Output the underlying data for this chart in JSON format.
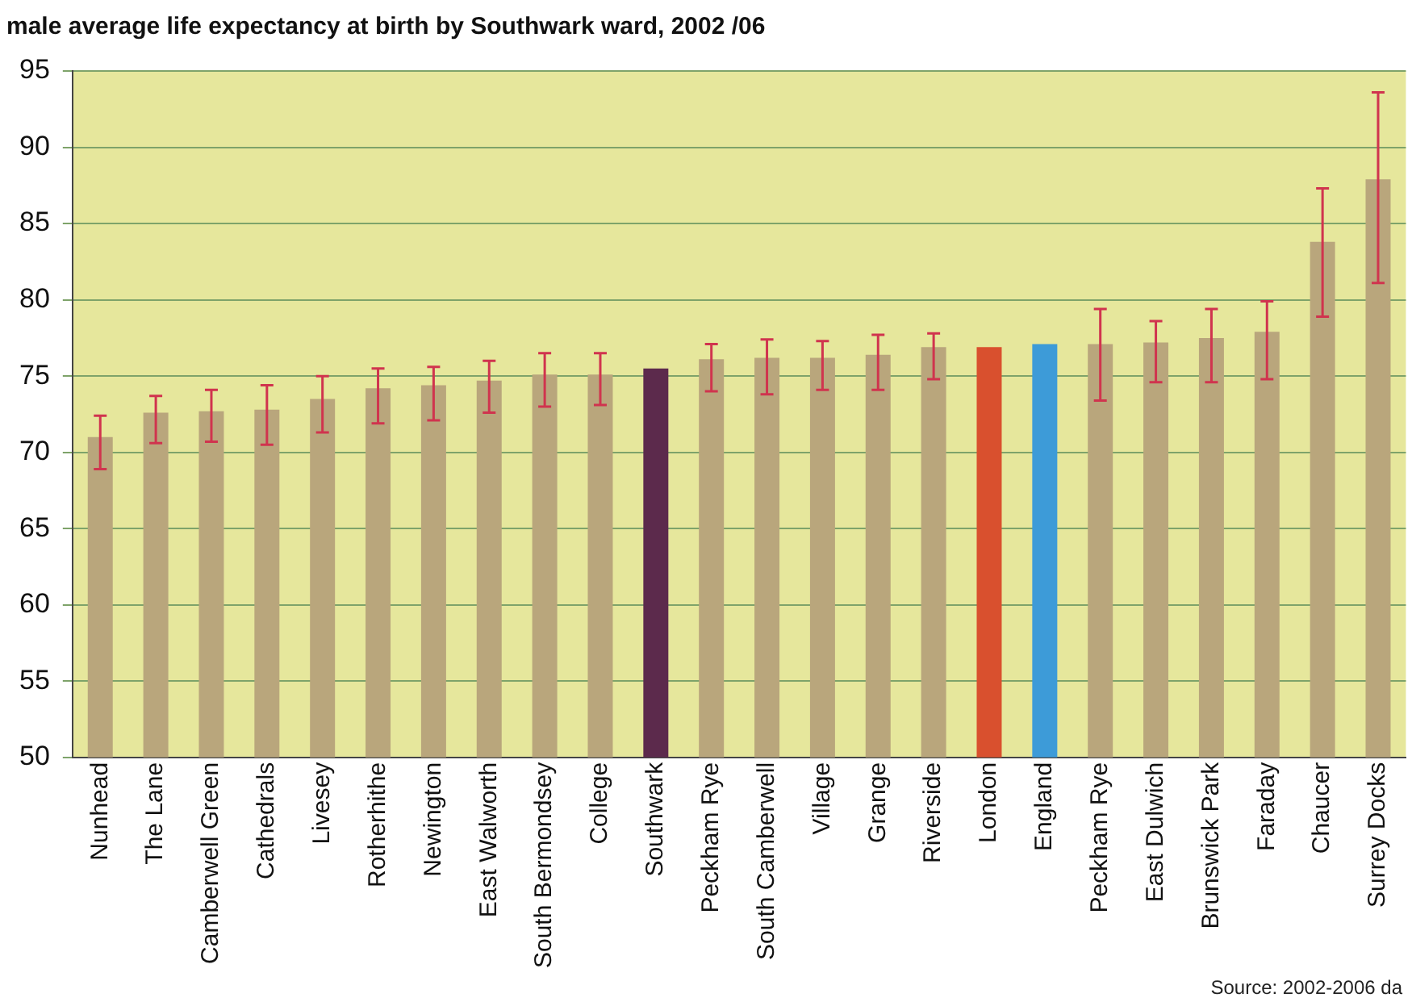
{
  "chart_data": {
    "type": "bar",
    "title": "male average life expectancy at birth by Southwark ward, 2002 /06",
    "categories": [
      "Nunhead",
      "The Lane",
      "Camberwell Green",
      "Cathedrals",
      "Livesey",
      "Rotherhithe",
      "Newington",
      "East Walworth",
      "South Bermondsey",
      "College",
      "Southwark",
      "Peckham Rye",
      "South Camberwell",
      "Village",
      "Grange",
      "Riverside",
      "London",
      "England",
      "Peckham Rye",
      "East Dulwich",
      "Brunswick Park",
      "Faraday",
      "Chaucer",
      "Surrey Docks"
    ],
    "values": [
      71.0,
      72.6,
      72.7,
      72.8,
      73.5,
      74.2,
      74.4,
      74.7,
      75.1,
      75.1,
      75.5,
      76.1,
      76.2,
      76.2,
      76.4,
      76.9,
      76.9,
      77.1,
      77.1,
      77.2,
      77.5,
      77.9,
      83.8,
      87.9
    ],
    "colors": [
      "#b9a67c",
      "#b9a67c",
      "#b9a67c",
      "#b9a67c",
      "#b9a67c",
      "#b9a67c",
      "#b9a67c",
      "#b9a67c",
      "#b9a67c",
      "#b9a67c",
      "#5c2a4c",
      "#b9a67c",
      "#b9a67c",
      "#b9a67c",
      "#b9a67c",
      "#b9a67c",
      "#d9502e",
      "#3d9bd8",
      "#b9a67c",
      "#b9a67c",
      "#b9a67c",
      "#b9a67c",
      "#b9a67c",
      "#b9a67c"
    ],
    "errors": [
      [
        68.9,
        72.4
      ],
      [
        70.6,
        73.7
      ],
      [
        70.7,
        74.1
      ],
      [
        70.5,
        74.4
      ],
      [
        71.3,
        75.0
      ],
      [
        71.9,
        75.5
      ],
      [
        72.1,
        75.6
      ],
      [
        72.6,
        76.0
      ],
      [
        73.0,
        76.5
      ],
      [
        73.1,
        76.5
      ],
      null,
      [
        74.0,
        77.1
      ],
      [
        73.8,
        77.4
      ],
      [
        74.1,
        77.3
      ],
      [
        74.1,
        77.7
      ],
      [
        74.8,
        77.8
      ],
      null,
      null,
      [
        73.4,
        79.4
      ],
      [
        74.6,
        78.6
      ],
      [
        74.6,
        79.4
      ],
      [
        74.8,
        79.9
      ],
      [
        78.9,
        87.3
      ],
      [
        81.1,
        93.6
      ]
    ],
    "ylim": [
      50,
      95
    ],
    "yticks": [
      50,
      55,
      60,
      65,
      70,
      75,
      80,
      85,
      90,
      95
    ],
    "grid": "y",
    "legend": false,
    "annotations": [
      "Source: 2002-2006 da"
    ]
  }
}
